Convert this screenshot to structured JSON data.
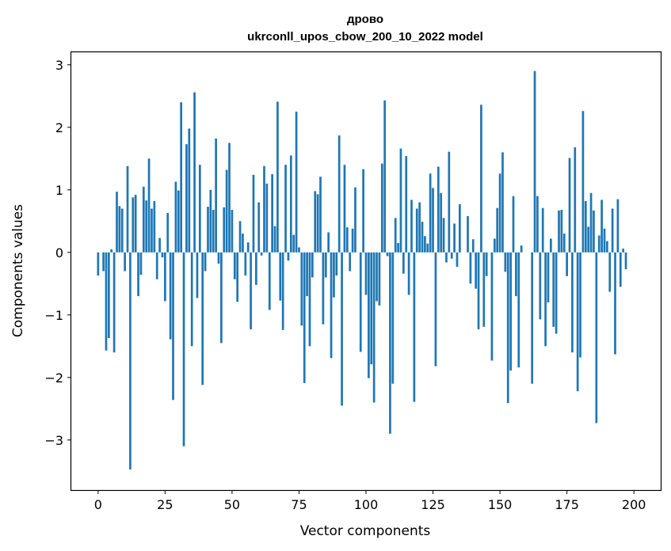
{
  "chart_data": {
    "type": "bar",
    "title": "дрово",
    "subtitle": "ukrconll_upos_cbow_200_10_2022 model",
    "xlabel": "Vector components",
    "ylabel": "Components values",
    "xlim": [
      -10,
      210
    ],
    "ylim": [
      -3.8,
      3.2
    ],
    "xticks": [
      0,
      25,
      50,
      75,
      100,
      125,
      150,
      175,
      200
    ],
    "xtick_labels": [
      "0",
      "25",
      "50",
      "75",
      "100",
      "125",
      "150",
      "175",
      "200"
    ],
    "yticks": [
      3,
      2,
      1,
      0,
      -1,
      -2,
      -3
    ],
    "ytick_labels": [
      "3",
      "2",
      "1",
      "0",
      "−1",
      "−2",
      "−3"
    ],
    "bar_color": "#1f77b4",
    "values": [
      -0.37,
      0.0,
      -0.3,
      -1.57,
      -1.37,
      0.05,
      -1.6,
      0.97,
      0.74,
      0.7,
      -0.3,
      1.38,
      -3.47,
      0.88,
      0.92,
      -0.7,
      -0.36,
      1.05,
      0.83,
      1.5,
      0.7,
      0.82,
      -0.43,
      0.23,
      -0.08,
      -0.78,
      0.63,
      -1.39,
      -2.36,
      1.13,
      0.99,
      2.4,
      -3.1,
      1.73,
      1.98,
      -1.5,
      2.56,
      -0.73,
      1.4,
      -2.12,
      -0.3,
      0.73,
      1.0,
      0.68,
      1.82,
      -0.18,
      -1.45,
      0.72,
      1.32,
      1.75,
      0.68,
      -0.43,
      -0.79,
      0.5,
      0.3,
      -0.37,
      0.16,
      -1.23,
      1.24,
      -0.52,
      0.8,
      -0.05,
      1.38,
      1.1,
      -0.92,
      1.25,
      0.42,
      2.41,
      -0.77,
      -1.24,
      1.4,
      -0.13,
      1.55,
      0.28,
      2.25,
      0.08,
      -1.17,
      -2.09,
      -0.7,
      -1.5,
      -0.4,
      0.98,
      0.93,
      1.21,
      -1.15,
      -0.4,
      0.32,
      -1.69,
      -0.72,
      -0.37,
      1.87,
      -2.45,
      1.4,
      0.4,
      -0.3,
      0.38,
      1.04,
      0.0,
      -1.59,
      1.33,
      -0.68,
      -2.01,
      -1.79,
      -2.4,
      -0.78,
      -0.85,
      1.42,
      2.43,
      -0.06,
      -2.9,
      -2.1,
      0.55,
      0.15,
      1.66,
      -0.34,
      1.54,
      -0.68,
      0.84,
      -2.39,
      0.7,
      0.8,
      0.49,
      0.26,
      0.14,
      1.26,
      1.03,
      -1.82,
      1.37,
      0.95,
      0.55,
      -0.16,
      1.61,
      -0.1,
      0.46,
      -0.23,
      0.77,
      0.0,
      0.0,
      0.58,
      -0.5,
      0.21,
      -0.58,
      -1.23,
      2.36,
      -1.19,
      -0.38,
      0.0,
      -1.73,
      0.22,
      0.71,
      1.26,
      1.6,
      -0.31,
      -2.41,
      -1.89,
      0.9,
      -0.7,
      -1.84,
      0.11,
      0.0,
      0.0,
      0.0,
      -2.1,
      2.9,
      0.9,
      -1.07,
      0.71,
      -1.5,
      -0.8,
      0.22,
      -1.19,
      -1.3,
      0.67,
      0.68,
      0.3,
      -0.38,
      1.51,
      -1.6,
      1.68,
      -2.22,
      -1.68,
      2.26,
      0.82,
      0.41,
      0.95,
      0.67,
      -2.73,
      0.27,
      0.84,
      0.38,
      0.18,
      -0.63,
      0.7,
      -1.63,
      0.85,
      -0.55,
      0.06,
      -0.27
    ]
  }
}
